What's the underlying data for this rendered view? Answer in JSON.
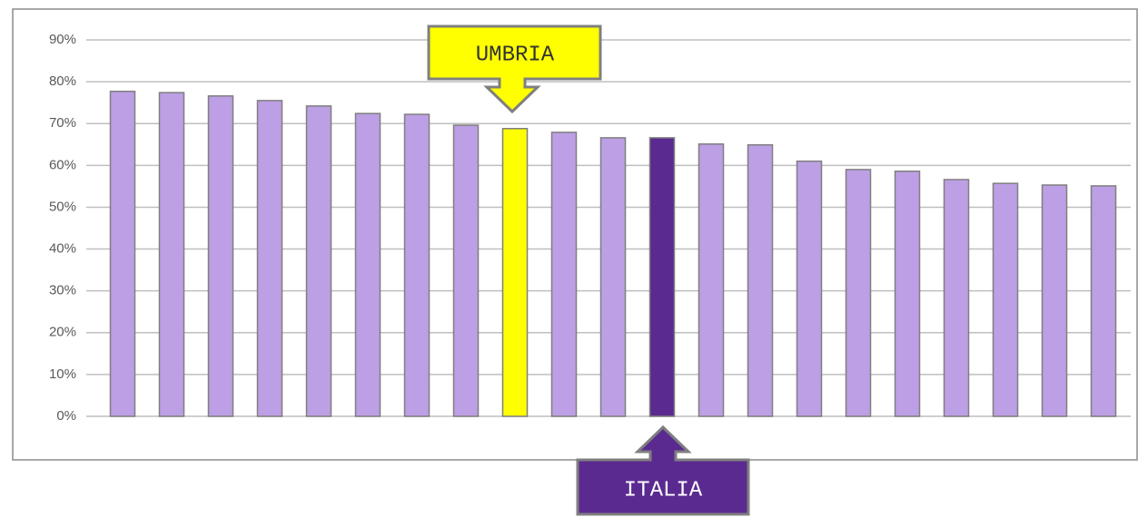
{
  "chart_data": {
    "type": "bar",
    "categories": [
      null,
      null,
      null,
      null,
      null,
      null,
      null,
      null,
      null,
      null,
      null,
      null,
      null,
      null,
      null,
      null,
      null,
      null,
      null,
      null,
      null
    ],
    "values": [
      77.7,
      77.4,
      76.6,
      75.5,
      74.2,
      72.4,
      72.2,
      69.6,
      68.8,
      67.9,
      66.6,
      66.6,
      65.1,
      64.9,
      61.0,
      59.0,
      58.6,
      56.6,
      55.7,
      55.3,
      55.1
    ],
    "colors": [
      "#bd9fe5",
      "#bd9fe5",
      "#bd9fe5",
      "#bd9fe5",
      "#bd9fe5",
      "#bd9fe5",
      "#bd9fe5",
      "#bd9fe5",
      "#ffff00",
      "#bd9fe5",
      "#bd9fe5",
      "#5b2a91",
      "#bd9fe5",
      "#bd9fe5",
      "#bd9fe5",
      "#bd9fe5",
      "#bd9fe5",
      "#bd9fe5",
      "#bd9fe5",
      "#bd9fe5",
      "#bd9fe5"
    ],
    "ylim": [
      0,
      90
    ],
    "yticks": [
      {
        "value": 0,
        "label": "0%"
      },
      {
        "value": 10,
        "label": "10%"
      },
      {
        "value": 20,
        "label": "20%"
      },
      {
        "value": 30,
        "label": "30%"
      },
      {
        "value": 40,
        "label": "40%"
      },
      {
        "value": 50,
        "label": "50%"
      },
      {
        "value": 60,
        "label": "60%"
      },
      {
        "value": 70,
        "label": "70%"
      },
      {
        "value": 80,
        "label": "80%"
      },
      {
        "value": 90,
        "label": "90%"
      }
    ],
    "grid": true,
    "annotations": [
      "UMBRIA",
      "ITALIA"
    ]
  }
}
